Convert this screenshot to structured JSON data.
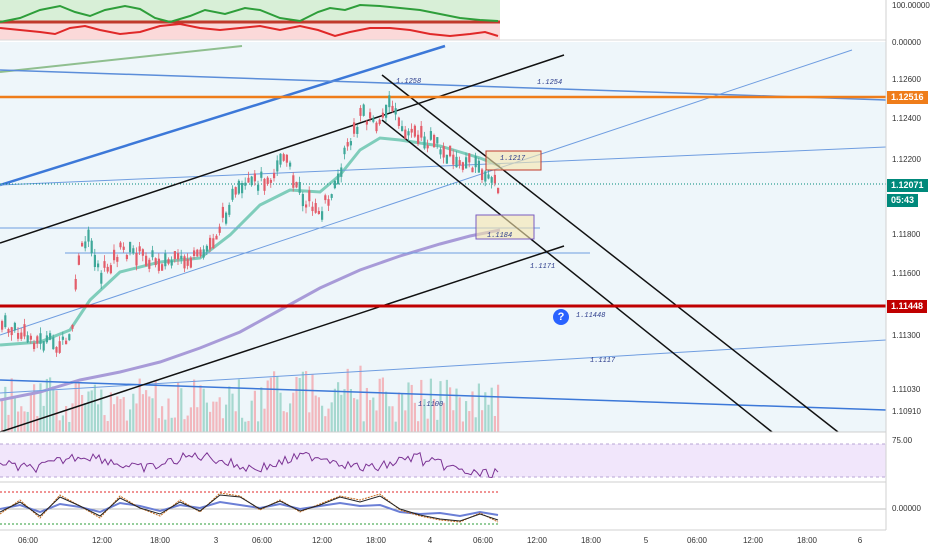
{
  "colors": {
    "accent": "#2962ff",
    "bull": "#e35d6a",
    "bear": "#3fa89a",
    "resistance": "#ef7d1a",
    "support_red": "#c00000",
    "ema_fast": "#7fcdbb",
    "ema_slow": "#a89bd8",
    "rsi": "#7b3294",
    "last_price": "#00897b"
  },
  "top_indicator": {
    "axis_top": "100.00000",
    "axis_bottom": "0.00000"
  },
  "price_axis": {
    "ticks": [
      "1.12600",
      "1.12400",
      "1.12200",
      "1.11800",
      "1.11600",
      "1.11300",
      "1.11030",
      "1.10910"
    ],
    "badges": {
      "resistance": "1.12516",
      "current": "1.12071",
      "countdown": "05:43",
      "support": "1.11448"
    }
  },
  "annotations": {
    "high": "1.1258",
    "line_1254": "1.1254",
    "box_upper": "1.1217",
    "box_lower": "1.1184",
    "line_1171": "1.1171",
    "support_label": "1.11448",
    "line_1117": "1.1117",
    "line_1100": "1.1100"
  },
  "rsi_axis": {
    "top": "75.00"
  },
  "osc_axis": {
    "zero": "0.00000"
  },
  "time_axis": {
    "labels": [
      "06:00",
      "12:00",
      "18:00",
      "3",
      "06:00",
      "12:00",
      "18:00",
      "4",
      "06:00",
      "12:00",
      "18:00",
      "5",
      "06:00",
      "12:00",
      "18:00",
      "6"
    ]
  },
  "help_icon": {
    "symbol": "?"
  }
}
